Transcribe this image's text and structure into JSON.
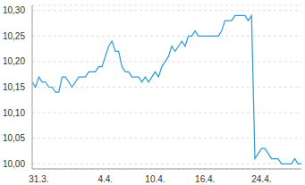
{
  "chart_data": {
    "type": "line",
    "categories": [
      null,
      null,
      "31.3.",
      null,
      null,
      null,
      null,
      null,
      null,
      null,
      null,
      null,
      null,
      null,
      null,
      null,
      null,
      null,
      null,
      null,
      null,
      null,
      "4.4.",
      null,
      null,
      null,
      null,
      null,
      null,
      null,
      null,
      null,
      null,
      null,
      null,
      null,
      null,
      "10.4.",
      null,
      null,
      null,
      null,
      null,
      null,
      null,
      null,
      null,
      null,
      null,
      null,
      null,
      null,
      "16.4.",
      null,
      null,
      null,
      null,
      null,
      null,
      null,
      null,
      null,
      null,
      null,
      null,
      null,
      null,
      null,
      null,
      "24.4.",
      null,
      null,
      null,
      null,
      null,
      null,
      null,
      null,
      null,
      null,
      null,
      null
    ],
    "values": [
      10.16,
      10.15,
      10.17,
      10.16,
      10.16,
      10.15,
      10.15,
      10.14,
      10.14,
      10.17,
      10.17,
      10.16,
      10.15,
      10.16,
      10.17,
      10.17,
      10.17,
      10.18,
      10.18,
      10.18,
      10.19,
      10.19,
      10.21,
      10.23,
      10.24,
      10.22,
      10.22,
      10.19,
      10.18,
      10.18,
      10.17,
      10.17,
      10.17,
      10.16,
      10.17,
      10.16,
      10.17,
      10.18,
      10.17,
      10.19,
      10.2,
      10.21,
      10.23,
      10.22,
      10.23,
      10.24,
      10.23,
      10.25,
      10.25,
      10.26,
      10.25,
      10.25,
      10.25,
      10.25,
      10.25,
      10.25,
      10.25,
      10.26,
      10.28,
      10.28,
      10.28,
      10.29,
      10.29,
      10.29,
      10.29,
      10.28,
      10.29,
      10.01,
      10.02,
      10.03,
      10.03,
      10.02,
      10.01,
      10.01,
      10.01,
      10.0,
      10.0,
      10.0,
      10.0,
      10.01,
      10.0,
      10.0
    ],
    "color": "#2a9ad6",
    "ylim": [
      9.99,
      10.31
    ],
    "yticks": [
      {
        "value": 10.0,
        "label": "10,00"
      },
      {
        "value": 10.05,
        "label": "10,05"
      },
      {
        "value": 10.1,
        "label": "10,10"
      },
      {
        "value": 10.15,
        "label": "10,15"
      },
      {
        "value": 10.2,
        "label": "10,20"
      },
      {
        "value": 10.25,
        "label": "10,25"
      },
      {
        "value": 10.3,
        "label": "10,30"
      }
    ],
    "grid": true
  }
}
